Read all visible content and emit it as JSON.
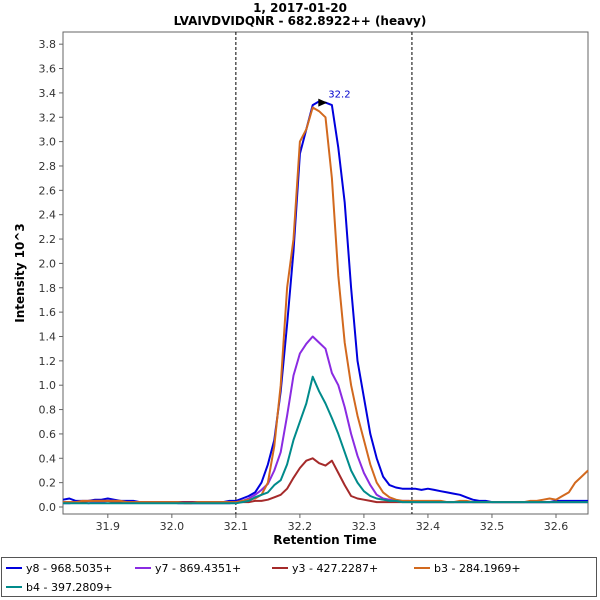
{
  "chart_data": {
    "type": "line",
    "title": "1, 2017-01-20",
    "subtitle": "LVAIVDVIDQNR - 682.8922++ (heavy)",
    "xlabel": "Retention Time",
    "ylabel": "Intensity 10^3",
    "xlim": [
      31.83,
      32.65
    ],
    "ylim": [
      0,
      3.9
    ],
    "x_ticks": [
      "31.9",
      "32.0",
      "32.1",
      "32.2",
      "32.3",
      "32.4",
      "32.5",
      "32.6"
    ],
    "y_ticks": [
      "0.0",
      "0.2",
      "0.4",
      "0.6",
      "0.8",
      "1.0",
      "1.2",
      "1.4",
      "1.6",
      "1.8",
      "2.0",
      "2.2",
      "2.4",
      "2.6",
      "2.8",
      "3.0",
      "3.2",
      "3.4",
      "3.6",
      "3.8"
    ],
    "grid": false,
    "legend_position": "bottom",
    "boundaries": [
      32.1,
      32.375
    ],
    "annotation": {
      "text": "32.2",
      "x": 32.235,
      "y": 3.32
    },
    "x": [
      31.83,
      31.84,
      31.85,
      31.86,
      31.87,
      31.88,
      31.89,
      31.9,
      31.91,
      31.92,
      31.93,
      31.94,
      31.95,
      31.96,
      31.97,
      31.98,
      31.99,
      32.0,
      32.01,
      32.02,
      32.03,
      32.04,
      32.05,
      32.06,
      32.07,
      32.08,
      32.09,
      32.1,
      32.11,
      32.12,
      32.13,
      32.14,
      32.15,
      32.16,
      32.17,
      32.18,
      32.19,
      32.2,
      32.21,
      32.22,
      32.23,
      32.24,
      32.25,
      32.26,
      32.27,
      32.28,
      32.29,
      32.3,
      32.31,
      32.32,
      32.33,
      32.34,
      32.35,
      32.36,
      32.37,
      32.38,
      32.39,
      32.4,
      32.41,
      32.42,
      32.43,
      32.44,
      32.45,
      32.46,
      32.47,
      32.48,
      32.49,
      32.5,
      32.51,
      32.52,
      32.53,
      32.54,
      32.55,
      32.56,
      32.57,
      32.58,
      32.59,
      32.6,
      32.61,
      32.62,
      32.63,
      32.64,
      32.65
    ],
    "series": [
      {
        "name": "y8 - 968.5035+",
        "color": "#0000dd",
        "values": [
          0.06,
          0.07,
          0.05,
          0.05,
          0.05,
          0.06,
          0.06,
          0.07,
          0.06,
          0.05,
          0.05,
          0.05,
          0.04,
          0.04,
          0.04,
          0.04,
          0.04,
          0.04,
          0.04,
          0.04,
          0.04,
          0.04,
          0.04,
          0.04,
          0.04,
          0.04,
          0.05,
          0.05,
          0.07,
          0.09,
          0.12,
          0.2,
          0.35,
          0.55,
          0.95,
          1.5,
          2.1,
          2.9,
          3.1,
          3.3,
          3.33,
          3.32,
          3.3,
          2.95,
          2.5,
          1.8,
          1.2,
          0.9,
          0.6,
          0.4,
          0.25,
          0.18,
          0.16,
          0.15,
          0.15,
          0.15,
          0.14,
          0.15,
          0.14,
          0.13,
          0.12,
          0.11,
          0.1,
          0.08,
          0.06,
          0.05,
          0.05,
          0.04,
          0.04,
          0.04,
          0.04,
          0.04,
          0.04,
          0.04,
          0.04,
          0.04,
          0.04,
          0.05,
          0.05,
          0.05,
          0.05,
          0.05,
          0.05
        ]
      },
      {
        "name": "y7 - 869.4351+",
        "color": "#8a2be2",
        "values": [
          0.03,
          0.03,
          0.04,
          0.04,
          0.03,
          0.04,
          0.04,
          0.05,
          0.05,
          0.04,
          0.04,
          0.04,
          0.04,
          0.04,
          0.04,
          0.04,
          0.04,
          0.04,
          0.03,
          0.03,
          0.03,
          0.03,
          0.03,
          0.03,
          0.03,
          0.03,
          0.03,
          0.04,
          0.05,
          0.07,
          0.1,
          0.14,
          0.19,
          0.3,
          0.45,
          0.75,
          1.08,
          1.26,
          1.34,
          1.4,
          1.35,
          1.3,
          1.1,
          1.0,
          0.82,
          0.6,
          0.42,
          0.28,
          0.18,
          0.1,
          0.07,
          0.06,
          0.05,
          0.05,
          0.05,
          0.04,
          0.04,
          0.04,
          0.04,
          0.04,
          0.04,
          0.04,
          0.04,
          0.04,
          0.04,
          0.04,
          0.04,
          0.04,
          0.04,
          0.04,
          0.04,
          0.04,
          0.04,
          0.04,
          0.04,
          0.04,
          0.04,
          0.04,
          0.04,
          0.04,
          0.04,
          0.04,
          0.04
        ]
      },
      {
        "name": "y3 - 427.2287+",
        "color": "#a52a2a",
        "values": [
          0.04,
          0.04,
          0.04,
          0.04,
          0.05,
          0.05,
          0.05,
          0.05,
          0.04,
          0.04,
          0.04,
          0.04,
          0.04,
          0.04,
          0.04,
          0.04,
          0.04,
          0.04,
          0.04,
          0.04,
          0.04,
          0.04,
          0.04,
          0.04,
          0.04,
          0.04,
          0.04,
          0.04,
          0.04,
          0.04,
          0.05,
          0.05,
          0.06,
          0.08,
          0.1,
          0.15,
          0.24,
          0.32,
          0.38,
          0.4,
          0.36,
          0.34,
          0.38,
          0.28,
          0.18,
          0.09,
          0.07,
          0.06,
          0.05,
          0.04,
          0.04,
          0.04,
          0.04,
          0.04,
          0.04,
          0.04,
          0.04,
          0.04,
          0.04,
          0.04,
          0.04,
          0.04,
          0.04,
          0.04,
          0.04,
          0.04,
          0.04,
          0.04,
          0.04,
          0.04,
          0.04,
          0.04,
          0.04,
          0.04,
          0.04,
          0.04,
          0.04,
          0.04,
          0.04,
          0.04,
          0.04,
          0.04,
          0.04
        ]
      },
      {
        "name": "b3 - 284.1969+",
        "color": "#d2691e",
        "values": [
          0.04,
          0.04,
          0.04,
          0.05,
          0.05,
          0.05,
          0.05,
          0.05,
          0.05,
          0.05,
          0.04,
          0.04,
          0.04,
          0.04,
          0.04,
          0.04,
          0.04,
          0.04,
          0.04,
          0.03,
          0.03,
          0.04,
          0.04,
          0.04,
          0.04,
          0.04,
          0.04,
          0.04,
          0.05,
          0.06,
          0.07,
          0.1,
          0.2,
          0.5,
          1.0,
          1.8,
          2.2,
          3.0,
          3.1,
          3.28,
          3.25,
          3.2,
          2.7,
          1.9,
          1.35,
          1.0,
          0.75,
          0.55,
          0.35,
          0.2,
          0.12,
          0.08,
          0.06,
          0.05,
          0.05,
          0.05,
          0.05,
          0.05,
          0.05,
          0.05,
          0.04,
          0.04,
          0.05,
          0.05,
          0.04,
          0.04,
          0.04,
          0.04,
          0.04,
          0.04,
          0.04,
          0.04,
          0.04,
          0.05,
          0.05,
          0.06,
          0.07,
          0.06,
          0.09,
          0.12,
          0.2,
          0.25,
          0.3
        ]
      },
      {
        "name": "b4 - 397.2809+",
        "color": "#008b8b",
        "values": [
          0.03,
          0.03,
          0.03,
          0.03,
          0.03,
          0.03,
          0.03,
          0.03,
          0.03,
          0.03,
          0.03,
          0.03,
          0.03,
          0.03,
          0.03,
          0.03,
          0.03,
          0.03,
          0.03,
          0.03,
          0.03,
          0.03,
          0.03,
          0.03,
          0.03,
          0.03,
          0.03,
          0.03,
          0.04,
          0.05,
          0.08,
          0.1,
          0.12,
          0.18,
          0.22,
          0.35,
          0.55,
          0.7,
          0.85,
          1.07,
          0.95,
          0.85,
          0.73,
          0.6,
          0.45,
          0.3,
          0.2,
          0.13,
          0.09,
          0.07,
          0.06,
          0.05,
          0.05,
          0.04,
          0.04,
          0.04,
          0.04,
          0.04,
          0.04,
          0.04,
          0.04,
          0.04,
          0.04,
          0.04,
          0.04,
          0.04,
          0.04,
          0.04,
          0.04,
          0.04,
          0.04,
          0.04,
          0.04,
          0.04,
          0.04,
          0.04,
          0.04,
          0.04,
          0.04,
          0.04,
          0.04,
          0.04,
          0.04
        ]
      }
    ]
  }
}
